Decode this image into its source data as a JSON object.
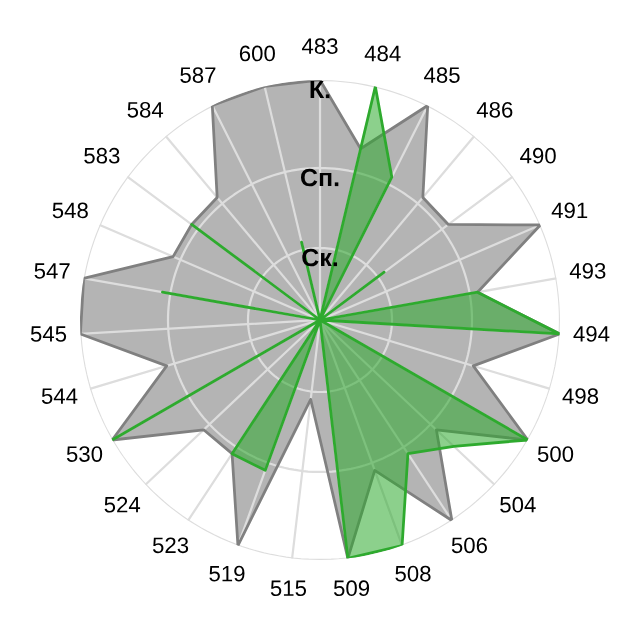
{
  "chart_data": {
    "type": "radar",
    "categories": [
      "483",
      "484",
      "485",
      "486",
      "490",
      "491",
      "493",
      "494",
      "498",
      "500",
      "504",
      "506",
      "508",
      "509",
      "515",
      "519",
      "523",
      "524",
      "530",
      "544",
      "545",
      "547",
      "548",
      "583",
      "584",
      "587",
      "600"
    ],
    "ylim": [
      0,
      3
    ],
    "yticks": [
      {
        "value": 0.9,
        "label": "Ск."
      },
      {
        "value": 1.9,
        "label": "Сп."
      },
      {
        "value": 3,
        "label": "К."
      }
    ],
    "grid": true,
    "series": [
      {
        "color": "#b4b4b4",
        "values": [
          3,
          2.2,
          3,
          2,
          2,
          3,
          2,
          3,
          2,
          3,
          2,
          3,
          2,
          3,
          1,
          3,
          2,
          2,
          3,
          2,
          3,
          3,
          2,
          2,
          2,
          3,
          3
        ]
      },
      {
        "color": "#2eaa2e",
        "values": [
          0,
          3,
          2,
          0,
          1,
          0,
          2,
          3,
          0,
          3,
          2.3,
          2,
          3,
          3,
          0,
          2,
          2,
          0,
          3,
          0,
          0,
          2,
          0,
          2,
          0,
          0,
          1
        ]
      }
    ]
  }
}
